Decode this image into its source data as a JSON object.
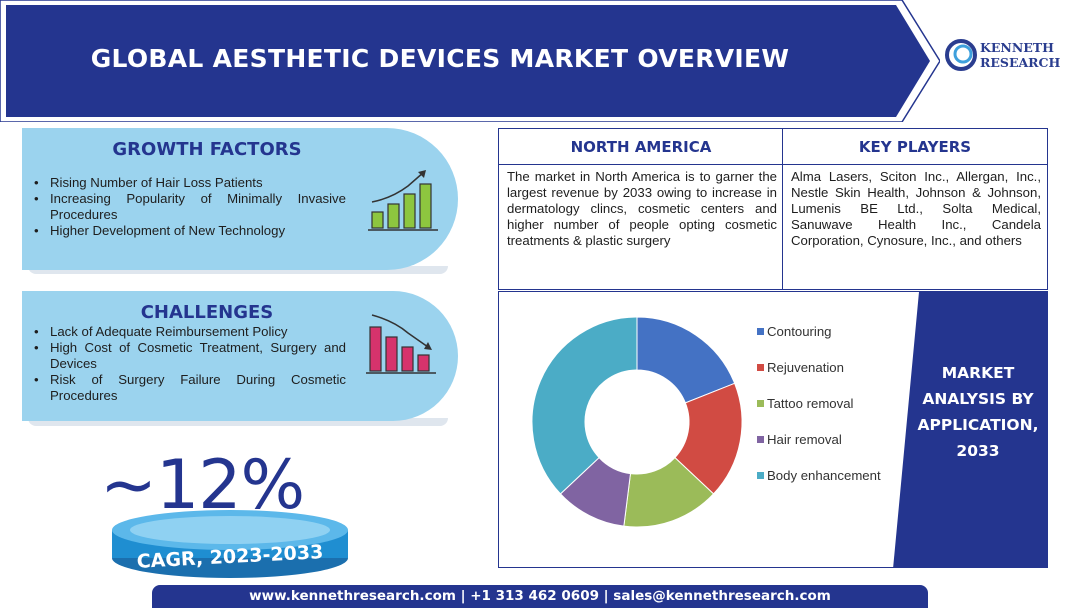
{
  "header": {
    "title": "GLOBAL AESTHETIC DEVICES MARKET OVERVIEW"
  },
  "logo": {
    "line1": "KENNETH",
    "line2": "RESEARCH"
  },
  "growth_factors": {
    "title": "GROWTH FACTORS",
    "items": [
      "Rising Number of Hair Loss Patients",
      "Increasing Popularity of Minimally Invasive Procedures",
      "Higher Development of New Technology"
    ]
  },
  "challenges": {
    "title": "CHALLENGES",
    "items": [
      "Lack of Adequate Reimbursement Policy",
      "High Cost of Cosmetic Treatment, Surgery and Devices",
      "Risk of Surgery Failure During Cosmetic Procedures"
    ]
  },
  "cagr": {
    "value": "~12%",
    "label": "CAGR, 2023-2033"
  },
  "north_america": {
    "title": "NORTH AMERICA",
    "text": "The market in North America is to garner the largest revenue by 2033 owing to increase in dermatology clincs, cosmetic centers and higher number of people opting cosmetic treatments & plastic surgery"
  },
  "key_players": {
    "title": "KEY PLAYERS",
    "text": "Alma Lasers, Sciton Inc., Allergan, Inc., Nestle Skin Health, Johnson & Johnson, Lumenis BE Ltd., Solta Medical, Sanuwave Health Inc., Candela Corporation, Cynosure, Inc., and others"
  },
  "chart_panel": {
    "title_lines": [
      "MARKET",
      "ANALYSIS BY",
      "APPLICATION,",
      "2033"
    ]
  },
  "chart_data": {
    "type": "pie",
    "donut": true,
    "categories": [
      "Contouring",
      "Rejuvenation",
      "Tattoo removal",
      "Hair removal",
      "Body enhancement"
    ],
    "values": [
      19,
      18,
      15,
      11,
      37
    ],
    "colors": [
      "#4472c4",
      "#d14b43",
      "#9bbb59",
      "#8064a2",
      "#4bacc6"
    ],
    "legend_position": "right"
  },
  "footer": {
    "text": "www.kennethresearch.com | +1 313 462 0609 | sales@kennethresearch.com"
  },
  "colors": {
    "navy": "#24358f",
    "light_blue": "#9bd3ee",
    "green_bars": "#8dc63f",
    "red_bars": "#d6336c"
  },
  "icons": {
    "growth": "growth-chart-icon",
    "decline": "decline-chart-icon",
    "logo": "kenneth-logo-icon"
  }
}
